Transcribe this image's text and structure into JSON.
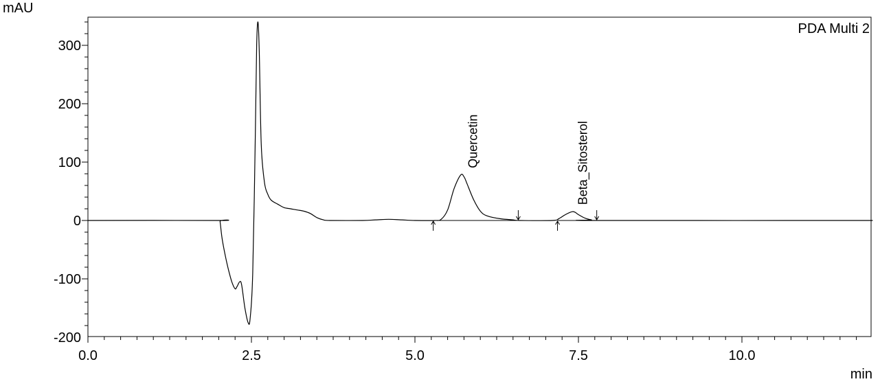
{
  "chart_data": {
    "type": "line",
    "y_unit": "mAU",
    "x_unit": "min",
    "channel": "PDA Multi 2",
    "xlim": [
      0.0,
      12.0
    ],
    "ylim": [
      -200,
      350
    ],
    "x_ticks": [
      0.0,
      2.5,
      5.0,
      7.5,
      10.0
    ],
    "x_tick_labels": [
      "0.0",
      "2.5",
      "5.0",
      "7.5",
      "10.0"
    ],
    "y_ticks": [
      300,
      200,
      100,
      0,
      -100,
      -200
    ],
    "y_tick_labels": [
      "300",
      "200",
      "100",
      "0",
      "-100",
      "-200"
    ],
    "grid": false,
    "series": [
      {
        "color": "#000000",
        "points": [
          [
            0.0,
            0
          ],
          [
            2.0,
            0
          ],
          [
            2.02,
            -2
          ],
          [
            2.05,
            -30
          ],
          [
            2.1,
            -60
          ],
          [
            2.15,
            -85
          ],
          [
            2.2,
            -105
          ],
          [
            2.25,
            -117
          ],
          [
            2.28,
            -113
          ],
          [
            2.32,
            -105
          ],
          [
            2.35,
            -110
          ],
          [
            2.4,
            -150
          ],
          [
            2.45,
            -175
          ],
          [
            2.48,
            -168
          ],
          [
            2.52,
            -90
          ],
          [
            2.56,
            150
          ],
          [
            2.58,
            300
          ],
          [
            2.6,
            340
          ],
          [
            2.62,
            290
          ],
          [
            2.65,
            130
          ],
          [
            2.7,
            65
          ],
          [
            2.75,
            45
          ],
          [
            2.8,
            35
          ],
          [
            2.9,
            28
          ],
          [
            3.0,
            22
          ],
          [
            3.1,
            20
          ],
          [
            3.2,
            18
          ],
          [
            3.3,
            16
          ],
          [
            3.4,
            12
          ],
          [
            3.5,
            5
          ],
          [
            3.6,
            1
          ],
          [
            3.7,
            0
          ],
          [
            4.2,
            0
          ],
          [
            4.4,
            1
          ],
          [
            4.6,
            2
          ],
          [
            4.8,
            1
          ],
          [
            5.0,
            0
          ],
          [
            5.3,
            0
          ],
          [
            5.4,
            2
          ],
          [
            5.5,
            18
          ],
          [
            5.6,
            55
          ],
          [
            5.7,
            78
          ],
          [
            5.75,
            75
          ],
          [
            5.8,
            62
          ],
          [
            5.9,
            35
          ],
          [
            6.0,
            16
          ],
          [
            6.1,
            8
          ],
          [
            6.3,
            3
          ],
          [
            6.5,
            1
          ],
          [
            6.6,
            0
          ],
          [
            7.1,
            0
          ],
          [
            7.2,
            3
          ],
          [
            7.3,
            10
          ],
          [
            7.4,
            15
          ],
          [
            7.45,
            14
          ],
          [
            7.5,
            10
          ],
          [
            7.6,
            4
          ],
          [
            7.7,
            1
          ],
          [
            7.8,
            0
          ],
          [
            12.0,
            0
          ]
        ]
      }
    ],
    "annotations": [
      {
        "text": "Quercetin",
        "x": 5.72,
        "y": 78
      },
      {
        "text": "Beta_Sitosterol",
        "x": 7.4,
        "y": 15
      }
    ],
    "baseline_segments": [
      [
        5.28,
        6.58
      ],
      [
        7.18,
        7.78
      ]
    ],
    "integration_markers": [
      {
        "x": 5.28,
        "dir": "up"
      },
      {
        "x": 6.58,
        "dir": "down"
      },
      {
        "x": 7.18,
        "dir": "up"
      },
      {
        "x": 7.78,
        "dir": "down"
      }
    ]
  }
}
